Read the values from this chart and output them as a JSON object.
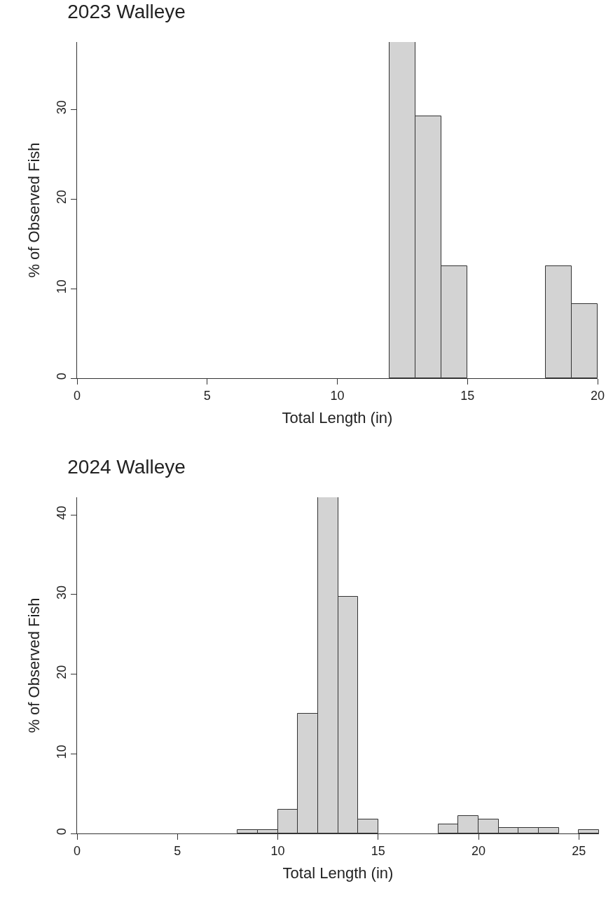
{
  "chart_data": [
    {
      "type": "histogram",
      "title": "2023 Walleye",
      "xlabel": "Total Length (in)",
      "ylabel": "% of Observed Fish",
      "color": "#d3d3d3",
      "bins": [
        0,
        1,
        2,
        3,
        4,
        5,
        6,
        7,
        8,
        9,
        10,
        11,
        12,
        13,
        14,
        15,
        16,
        17,
        18,
        19,
        20
      ],
      "values": [
        0,
        0,
        0,
        0,
        0,
        0,
        0,
        0,
        0,
        0,
        0,
        0,
        37.5,
        29.2,
        12.5,
        0,
        0,
        0,
        12.5,
        8.3
      ],
      "xlim": [
        0,
        20
      ],
      "xticks": [
        0,
        5,
        10,
        15,
        20
      ],
      "ylim": [
        0,
        37.5
      ],
      "yticks": [
        0,
        10,
        20,
        30
      ],
      "grid": false
    },
    {
      "type": "histogram",
      "title": "2024 Walleye",
      "xlabel": "Total Length (in)",
      "ylabel": "% of Observed Fish",
      "color": "#d3d3d3",
      "bins": [
        0,
        1,
        2,
        3,
        4,
        5,
        6,
        7,
        8,
        9,
        10,
        11,
        12,
        13,
        14,
        15,
        16,
        17,
        18,
        19,
        20,
        21,
        22,
        23,
        24,
        25,
        26
      ],
      "values": [
        0,
        0,
        0,
        0,
        0,
        0,
        0,
        0,
        0.4,
        0.4,
        3.0,
        15.0,
        42.2,
        29.7,
        1.8,
        0,
        0,
        0,
        1.1,
        2.2,
        1.8,
        0.7,
        0.7,
        0.7,
        0,
        0.4
      ],
      "xlim": [
        0,
        26
      ],
      "xticks": [
        0,
        5,
        10,
        15,
        20,
        25
      ],
      "ylim": [
        0,
        42.2
      ],
      "yticks": [
        0,
        10,
        20,
        30,
        40
      ],
      "grid": false
    }
  ]
}
